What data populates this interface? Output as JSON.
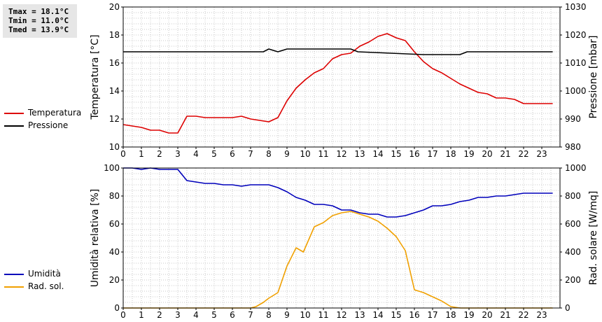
{
  "stats": {
    "tmax": "Tmax = 18.1°C",
    "tmin": "Tmin = 11.0°C",
    "tmed": "Tmed = 13.9°C"
  },
  "colors": {
    "temperature": "#dd0000",
    "pressure": "#000000",
    "humidity": "#0000bb",
    "radiation": "#f0a000",
    "grid": "#c8c8c8"
  },
  "chart_data": [
    {
      "type": "line",
      "xlabel": "",
      "ylabel": "Temperatura [°C]",
      "y2label": "Pressione [mbar]",
      "xlim": [
        0,
        24
      ],
      "ylim": [
        10,
        20
      ],
      "y2lim": [
        980,
        1030
      ],
      "xticks": [
        "0",
        "1",
        "2",
        "3",
        "4",
        "5",
        "6",
        "7",
        "8",
        "9",
        "10",
        "11",
        "12",
        "13",
        "14",
        "15",
        "16",
        "17",
        "18",
        "19",
        "20",
        "21",
        "22",
        "23"
      ],
      "yticks": [
        "10",
        "12",
        "14",
        "16",
        "18",
        "20"
      ],
      "y2ticks": [
        "980",
        "990",
        "1000",
        "1010",
        "1020",
        "1030"
      ],
      "grid": true,
      "legend_position": "left",
      "series": [
        {
          "name": "Temperatura",
          "axis": "left",
          "x": [
            0,
            0.5,
            1,
            1.5,
            2,
            2.5,
            3,
            3.5,
            4,
            4.5,
            5,
            5.5,
            6,
            6.5,
            7,
            7.5,
            8,
            8.5,
            9,
            9.5,
            10,
            10.5,
            11,
            11.5,
            12,
            12.5,
            13,
            13.5,
            14,
            14.5,
            15,
            15.5,
            16,
            16.5,
            17,
            17.5,
            18,
            18.5,
            19,
            19.5,
            20,
            20.5,
            21,
            21.5,
            22,
            22.5,
            23,
            23.6
          ],
          "y": [
            11.6,
            11.5,
            11.4,
            11.2,
            11.2,
            11.0,
            11.0,
            12.2,
            12.2,
            12.1,
            12.1,
            12.1,
            12.1,
            12.2,
            12.0,
            11.9,
            11.8,
            12.1,
            13.3,
            14.2,
            14.8,
            15.3,
            15.6,
            16.3,
            16.6,
            16.7,
            17.2,
            17.5,
            17.9,
            18.1,
            17.8,
            17.6,
            16.8,
            16.1,
            15.6,
            15.3,
            14.9,
            14.5,
            14.2,
            13.9,
            13.8,
            13.5,
            13.5,
            13.4,
            13.1,
            13.1,
            13.1,
            13.1
          ]
        },
        {
          "name": "Pressione",
          "axis": "right",
          "x": [
            0,
            7.7,
            8,
            8.5,
            9,
            12.5,
            12.9,
            16.5,
            18.5,
            18.9,
            23.6
          ],
          "y": [
            1014,
            1014,
            1015,
            1014,
            1015,
            1015,
            1014,
            1013,
            1013,
            1014,
            1014
          ]
        }
      ]
    },
    {
      "type": "line",
      "xlabel": "",
      "ylabel": "Umidità relativa [%]",
      "y2label": "Rad. solare [W/mq]",
      "xlim": [
        0,
        24
      ],
      "ylim": [
        0,
        100
      ],
      "y2lim": [
        0,
        1000
      ],
      "xticks": [
        "0",
        "1",
        "2",
        "3",
        "4",
        "5",
        "6",
        "7",
        "8",
        "9",
        "10",
        "11",
        "12",
        "13",
        "14",
        "15",
        "16",
        "17",
        "18",
        "19",
        "20",
        "21",
        "22",
        "23"
      ],
      "yticks": [
        "0",
        "20",
        "40",
        "60",
        "80",
        "100"
      ],
      "y2ticks": [
        "0",
        "200",
        "400",
        "600",
        "800",
        "1000"
      ],
      "grid": true,
      "legend_position": "left",
      "series": [
        {
          "name": "Umidità",
          "axis": "left",
          "x": [
            0,
            0.5,
            1,
            1.5,
            2,
            3,
            3.5,
            4,
            4.5,
            5,
            5.5,
            6,
            6.5,
            7,
            7.5,
            8,
            8.5,
            9,
            9.5,
            10,
            10.5,
            11,
            11.5,
            12,
            12.5,
            13,
            13.5,
            14,
            14.5,
            15,
            15.5,
            16,
            16.5,
            17,
            17.5,
            18,
            18.5,
            19,
            19.5,
            20,
            20.5,
            21,
            21.5,
            22,
            22.5,
            23,
            23.6
          ],
          "y": [
            100,
            100,
            99,
            100,
            99,
            99,
            91,
            90,
            89,
            89,
            88,
            88,
            87,
            88,
            88,
            88,
            86,
            83,
            79,
            77,
            74,
            74,
            73,
            70,
            70,
            68,
            67,
            67,
            65,
            65,
            66,
            68,
            70,
            73,
            73,
            74,
            76,
            77,
            79,
            79,
            80,
            80,
            81,
            82,
            82,
            82,
            82
          ]
        },
        {
          "name": "Rad. sol.",
          "axis": "right",
          "x": [
            0,
            7,
            7.3,
            7.7,
            8,
            8.5,
            9,
            9.5,
            9.9,
            10.5,
            11,
            11.5,
            12,
            12.5,
            13,
            13.5,
            14,
            14.5,
            15,
            15.5,
            16,
            16.5,
            17,
            17.5,
            18,
            18.5,
            19,
            23.6
          ],
          "y": [
            0,
            0,
            10,
            40,
            70,
            110,
            300,
            430,
            400,
            580,
            610,
            660,
            680,
            690,
            670,
            650,
            620,
            570,
            510,
            410,
            130,
            110,
            80,
            50,
            10,
            0,
            0,
            0
          ]
        }
      ]
    }
  ],
  "legend": {
    "temperature": "Temperatura",
    "pressure": "Pressione",
    "humidity": "Umidità",
    "radiation": "Rad. sol."
  }
}
